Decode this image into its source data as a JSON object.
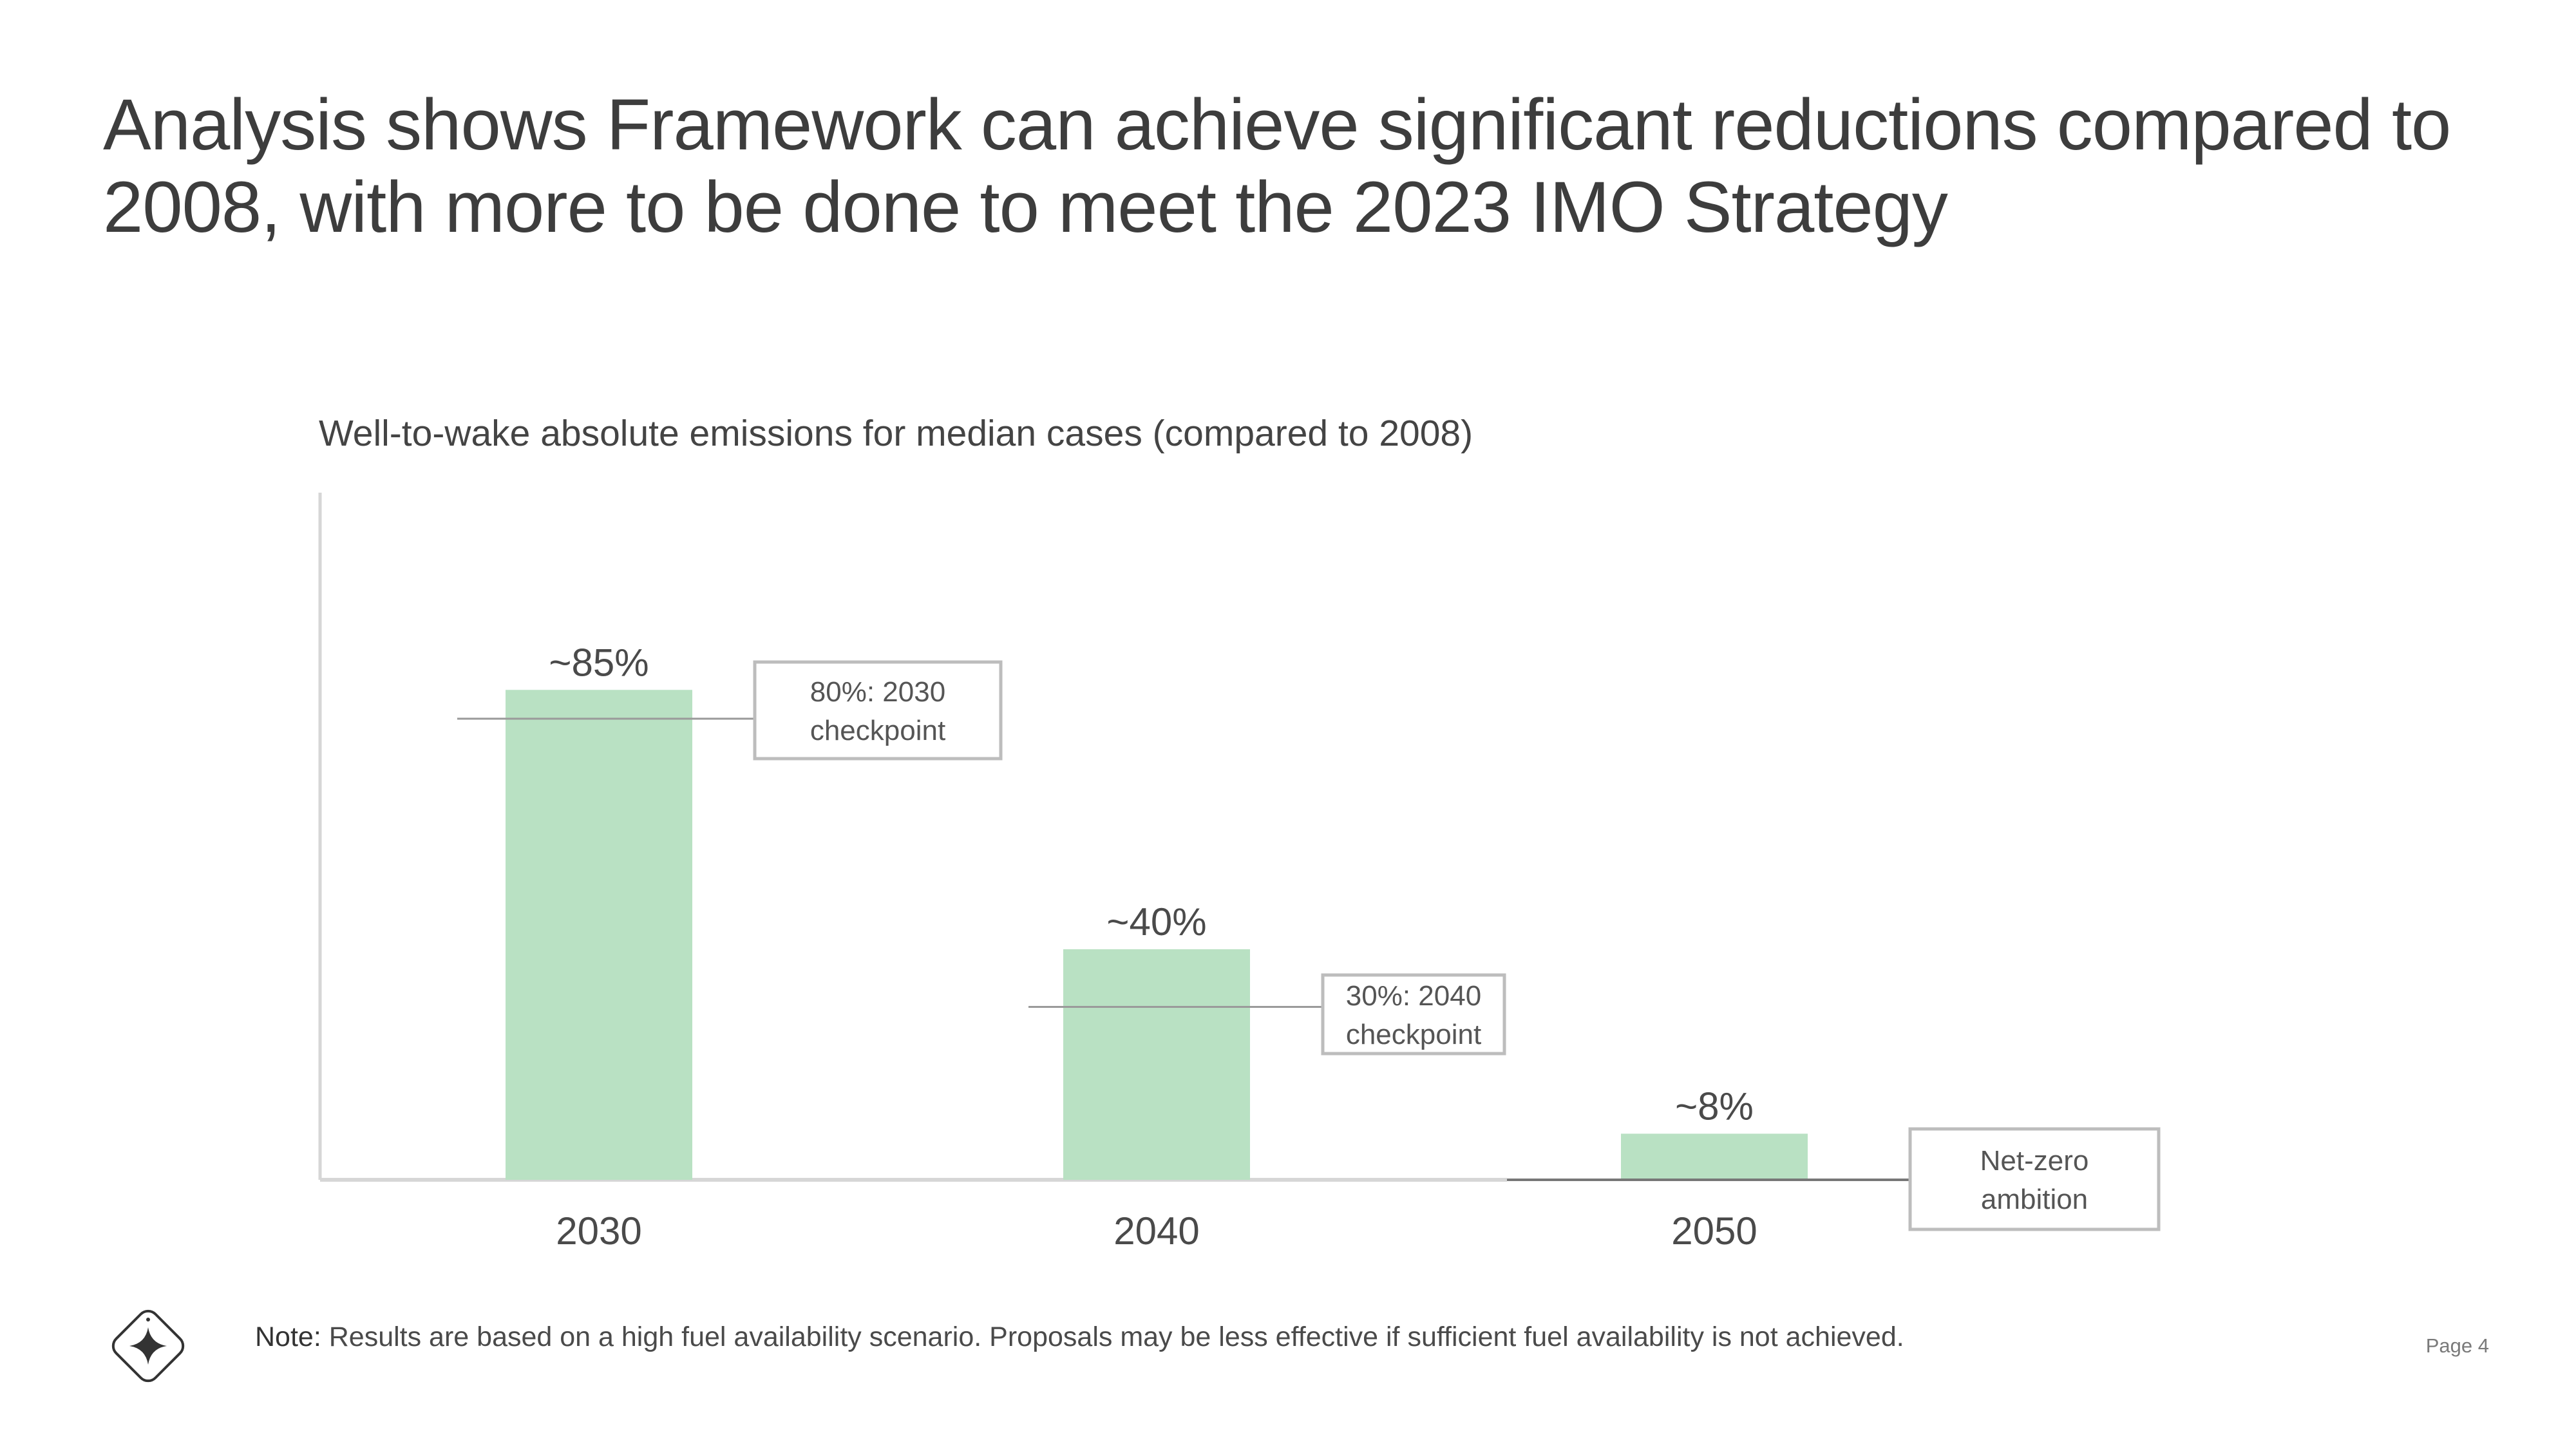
{
  "title": "Analysis shows Framework can achieve significant reductions compared to 2008, with more to be done to meet the 2023 IMO Strategy",
  "chart_data": {
    "type": "bar",
    "title": "Well-to-wake absolute emissions for median cases (compared to 2008)",
    "xlabel": "",
    "ylabel": "",
    "categories": [
      "2030",
      "2040",
      "2050"
    ],
    "values": [
      85,
      40,
      8
    ],
    "value_labels": [
      "~85%",
      "~40%",
      "~8%"
    ],
    "ylim": [
      0,
      120
    ],
    "bar_color": "#b9e1c3",
    "grid": false,
    "reference_markers": [
      {
        "category": "2030",
        "value": 80,
        "label_lines": [
          "80%: 2030",
          "checkpoint"
        ]
      },
      {
        "category": "2040",
        "value": 30,
        "label_lines": [
          "30%: 2040",
          "checkpoint"
        ]
      },
      {
        "category": "2050",
        "value": 0,
        "label_lines": [
          "Net-zero",
          "ambition"
        ]
      }
    ]
  },
  "note": {
    "lead": "Note:",
    "text": " Results are based on a high fuel availability scenario. Proposals may be less effective if sufficient fuel availability is not achieved."
  },
  "page_label": "Page 4",
  "logo_icon": "sparkle-diamond-icon"
}
